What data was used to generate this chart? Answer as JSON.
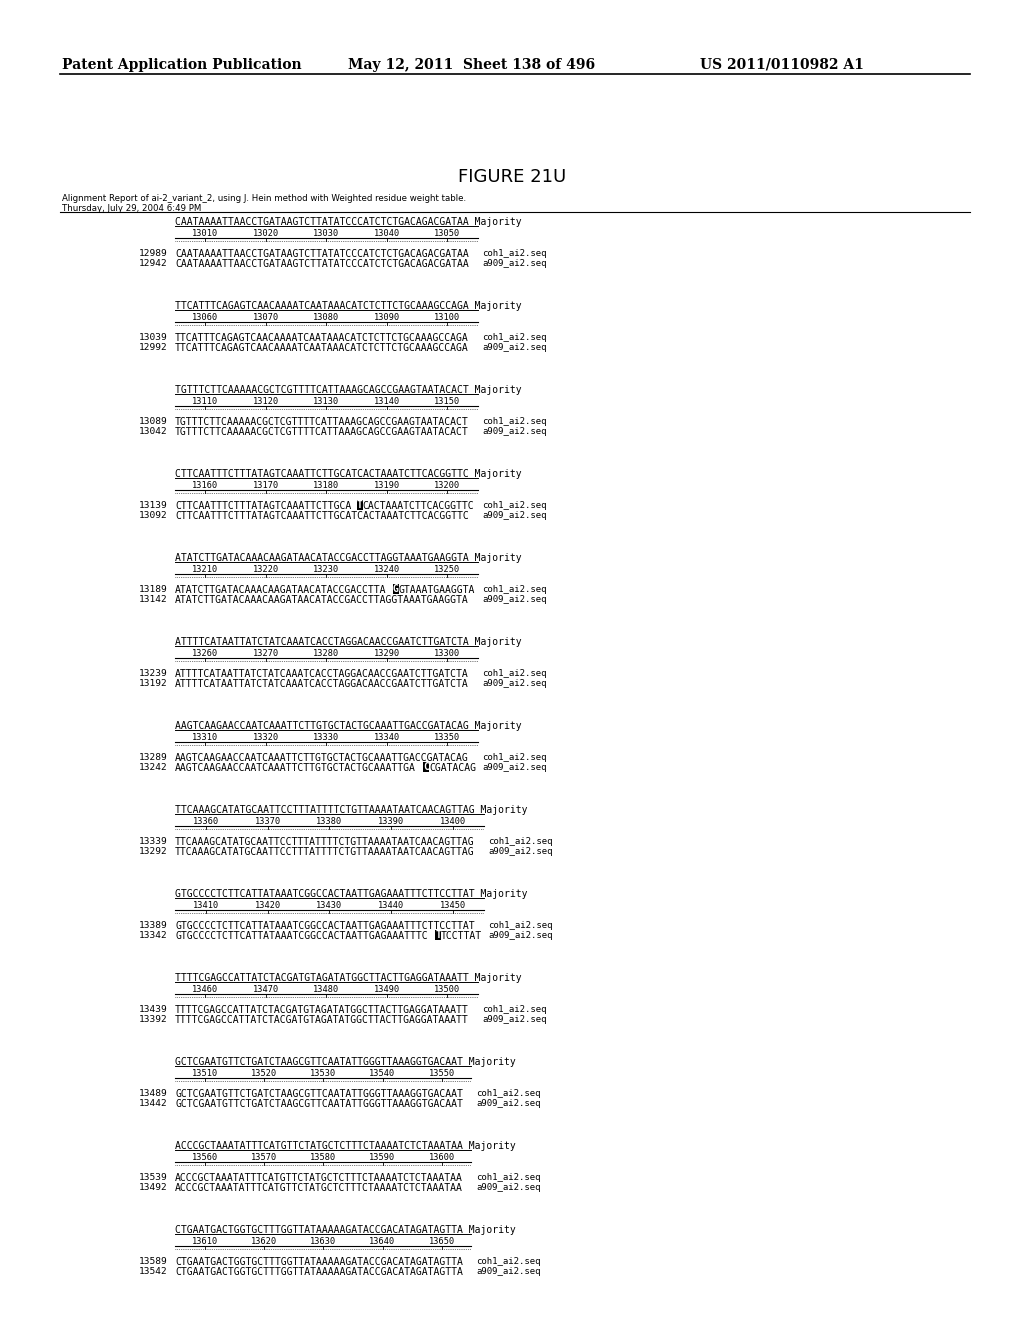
{
  "header_left": "Patent Application Publication",
  "header_mid": "May 12, 2011  Sheet 138 of 496",
  "header_right": "US 2011/0110982 A1",
  "figure_title": "FIGURE 21U",
  "subtitle1": "Alignment Report of ai-2_variant_2, using J. Hein method with Weighted residue weight table.",
  "subtitle2": "Thursday, July 29, 2004 6:49 PM",
  "blocks": [
    {
      "majority_seq": "CAATAAAATTAACCTGATAAGTCTTATATCCCATCTCTGACAGACGATAA",
      "ticks": [
        "13010",
        "13020",
        "13030",
        "13040",
        "13050"
      ],
      "seq1_num": "12989",
      "seq1": "CAATAAAATTAACCTGATAAGTCTTATATCCCATCTCTGACAGACGATAA",
      "label1": "coh1_ai2.seq",
      "seq2_num": "12942",
      "seq2": "CAATAAAATTAACCTGATAAGTCTTATATCCCATCTCTGACAGACGATAA",
      "label2": "a909_ai2.seq",
      "hl1": -1,
      "hl2": -1
    },
    {
      "majority_seq": "TTCATTTCAGAGTCAACAAAATCAATAAACATCTCTTCTGCAAAGCCAGA",
      "ticks": [
        "13060",
        "13070",
        "13080",
        "13090",
        "13100"
      ],
      "seq1_num": "13039",
      "seq1": "TTCATTTCAGAGTCAACAAAATCAATAAACATCTCTTCTGCAAAGCCAGA",
      "label1": "coh1_ai2.seq",
      "seq2_num": "12992",
      "seq2": "TTCATTTCAGAGTCAACAAAATCAATAAACATCTCTTCTGCAAAGCCAGA",
      "label2": "a909_ai2.seq",
      "hl1": -1,
      "hl2": -1
    },
    {
      "majority_seq": "TGTTTCTTCAAAAACGCTCGTTTTCATTAAAGCAGCCGAAGTAATACACT",
      "ticks": [
        "13110",
        "13120",
        "13130",
        "13140",
        "13150"
      ],
      "seq1_num": "13089",
      "seq1": "TGTTTCTTCAAAAACGCTCGTTTTCATTAAAGCAGCCGAAGTAATACACT",
      "label1": "coh1_ai2.seq",
      "seq2_num": "13042",
      "seq2": "TGTTTCTTCAAAAACGCTCGTTTTCATTAAAGCAGCCGAAGTAATACACT",
      "label2": "a909_ai2.seq",
      "hl1": -1,
      "hl2": -1
    },
    {
      "majority_seq": "CTTCAATTTCTTTATAGTCAAATTCTTGCATCACTAAATCTTCACGGTTC",
      "ticks": [
        "13160",
        "13170",
        "13180",
        "13190",
        "13200"
      ],
      "seq1_num": "13139",
      "seq1": "CTTCAATTTCTTTATAGTCAAATTCTTGCATCACTAAATCTTCACGGTTC",
      "label1": "coh1_ai2.seq",
      "seq2_num": "13092",
      "seq2": "CTTCAATTTCTTTATAGTCAAATTCTTGCATCACTAAATCTTCACGGTTC",
      "label2": "a909_ai2.seq",
      "hl1": 30,
      "hl2": -1
    },
    {
      "majority_seq": "ATATCTTGATACAAACAAGATAACATACCGACCTTAGGTAAATGAAGGTA",
      "ticks": [
        "13210",
        "13220",
        "13230",
        "13240",
        "13250"
      ],
      "seq1_num": "13189",
      "seq1": "ATATCTTGATACAAACAAGATAACATACCGACCTTAGGTAAATGAAGGTA",
      "label1": "coh1_ai2.seq",
      "seq2_num": "13142",
      "seq2": "ATATCTTGATACAAACAAGATAACATACCGACCTTAGGTAAATGAAGGTA",
      "label2": "a909_ai2.seq",
      "hl1": 36,
      "hl2": -1
    },
    {
      "majority_seq": "ATTTTCATAATTATCTATCAAATCACCTAGGACAACCGAATCTTGATCTA",
      "ticks": [
        "13260",
        "13270",
        "13280",
        "13290",
        "13300"
      ],
      "seq1_num": "13239",
      "seq1": "ATTTTCATAATTATCTATCAAATCACCTAGGACAACCGAATCTTGATCTA",
      "label1": "coh1_ai2.seq",
      "seq2_num": "13192",
      "seq2": "ATTTTCATAATTATCTATCAAATCACCTAGGACAACCGAATCTTGATCTA",
      "label2": "a909_ai2.seq",
      "hl1": -1,
      "hl2": -1
    },
    {
      "majority_seq": "AAGTCAAGAACCAATCAAATTCTTGTGCTACTGCAAATTGACCGATACAG",
      "ticks": [
        "13310",
        "13320",
        "13330",
        "13340",
        "13350"
      ],
      "seq1_num": "13289",
      "seq1": "AAGTCAAGAACCAATCAAATTCTTGTGCTACTGCAAATTGACCGATACAG",
      "label1": "coh1_ai2.seq",
      "seq2_num": "13242",
      "seq2": "AAGTCAAGAACCAATCAAATTCTTGTGCTACTGCAAATTGACCGATACAG",
      "label2": "a909_ai2.seq",
      "hl1": -1,
      "hl2": 41
    },
    {
      "majority_seq": "TTCAAAGCATATGCAATTCCTTTATTTTCTGTTAAAATAATCAACAGTTAG",
      "ticks": [
        "13360",
        "13370",
        "13380",
        "13390",
        "13400"
      ],
      "seq1_num": "13339",
      "seq1": "TTCAAAGCATATGCAATTCCTTTATTTTCTGTTAAAATAATCAACAGTTAG",
      "label1": "coh1_ai2.seq",
      "seq2_num": "13292",
      "seq2": "TTCAAAGCATATGCAATTCCTTTATTTTCTGTTAAAATAATCAACAGTTAG",
      "label2": "a909_ai2.seq",
      "hl1": -1,
      "hl2": -1
    },
    {
      "majority_seq": "GTGCCCCTCTTCATTATAAATCGGCCACTAATTGAGAAATTTCTTCCTTAT",
      "ticks": [
        "13410",
        "13420",
        "13430",
        "13440",
        "13450"
      ],
      "seq1_num": "13389",
      "seq1": "GTGCCCCTCTTCATTATAAATCGGCCACTAATTGAGAAATTTCTTCCTTAT",
      "label1": "coh1_ai2.seq",
      "seq2_num": "13342",
      "seq2": "GTGCCCCTCTTCATTATAAATCGGCCACTAATTGAGAAATTTCTTCCTTAT",
      "label2": "a909_ai2.seq",
      "hl1": -1,
      "hl2": 43
    },
    {
      "majority_seq": "TTTTCGAGCCATTATCTACGATGTAGATATGGCTTACTTGAGGATAAATT",
      "ticks": [
        "13460",
        "13470",
        "13480",
        "13490",
        "13500"
      ],
      "seq1_num": "13439",
      "seq1": "TTTTCGAGCCATTATCTACGATGTAGATATGGCTTACTTGAGGATAAATT",
      "label1": "coh1_ai2.seq",
      "seq2_num": "13392",
      "seq2": "TTTTCGAGCCATTATCTACGATGTAGATATGGCTTACTTGAGGATAAATT",
      "label2": "a909_ai2.seq",
      "hl1": -1,
      "hl2": -1
    },
    {
      "majority_seq": "GCTCGAATGTTCTGATCTAAGCGTTCAATATTGGGTTAAAGGTGACAAT",
      "ticks": [
        "13510",
        "13520",
        "13530",
        "13540",
        "13550"
      ],
      "seq1_num": "13489",
      "seq1": "GCTCGAATGTTCTGATCTAAGCGTTCAATATTGGGTTAAAGGTGACAAT",
      "label1": "coh1_ai2.seq",
      "seq2_num": "13442",
      "seq2": "GCTCGAATGTTCTGATCTAAGCGTTCAATATTGGGTTAAAGGTGACAAT",
      "label2": "a909_ai2.seq",
      "hl1": -1,
      "hl2": -1
    },
    {
      "majority_seq": "ACCCGCTAAATATTTCATGTTCTATGCTCTTTCTAAAATCTCTAAATAA",
      "ticks": [
        "13560",
        "13570",
        "13580",
        "13590",
        "13600"
      ],
      "seq1_num": "13539",
      "seq1": "ACCCGCTAAATATTTCATGTTCTATGCTCTTTCTAAAATCTCTAAATAA",
      "label1": "coh1_ai2.seq",
      "seq2_num": "13492",
      "seq2": "ACCCGCTAAATATTTCATGTTCTATGCTCTTTCTAAAATCTCTAAATAA",
      "label2": "a909_ai2.seq",
      "hl1": -1,
      "hl2": -1
    },
    {
      "majority_seq": "CTGAATGACTGGTGCTTTGGTTATAAAAAGATACCGACATAGATAGTTA",
      "ticks": [
        "13610",
        "13620",
        "13630",
        "13640",
        "13650"
      ],
      "seq1_num": "13589",
      "seq1": "CTGAATGACTGGTGCTTTGGTTATAAAAAGATACCGACATAGATAGTTA",
      "label1": "coh1_ai2.seq",
      "seq2_num": "13542",
      "seq2": "CTGAATGACTGGTGCTTTGGTTATAAAAAGATACCGACATAGATAGTTA",
      "label2": "a909_ai2.seq",
      "hl1": -1,
      "hl2": -1
    }
  ]
}
